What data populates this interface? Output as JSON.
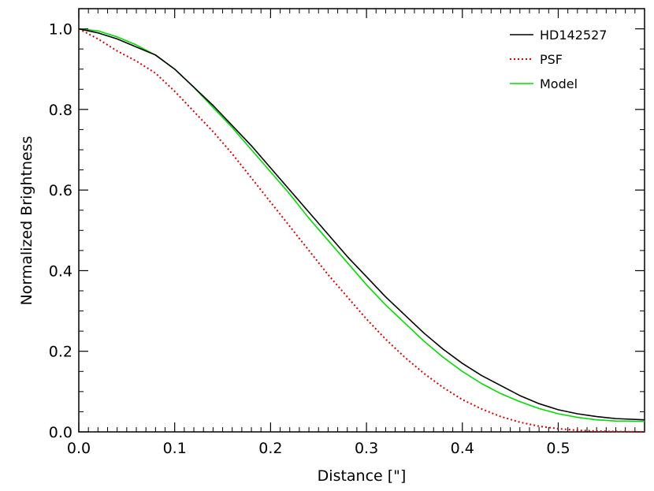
{
  "chart_data": {
    "type": "line",
    "xlabel": "Distance [\"]",
    "ylabel": "Normalized Brightness",
    "xlim": [
      0.0,
      0.59
    ],
    "ylim": [
      0.0,
      1.05
    ],
    "x_ticks": [
      0.0,
      0.1,
      0.2,
      0.3,
      0.4,
      0.5
    ],
    "x_tick_labels": [
      "0.0",
      "0.1",
      "0.2",
      "0.3",
      "0.4",
      "0.5"
    ],
    "y_ticks": [
      0.0,
      0.2,
      0.4,
      0.6,
      0.8,
      1.0
    ],
    "y_tick_labels": [
      "0.0",
      "0.2",
      "0.4",
      "0.6",
      "0.8",
      "1.0"
    ],
    "grid": false,
    "legend_position": "top-right",
    "series": [
      {
        "name": "HD142527",
        "color": "#000000",
        "style": "solid",
        "x": [
          0.0,
          0.02,
          0.04,
          0.06,
          0.08,
          0.1,
          0.12,
          0.14,
          0.16,
          0.18,
          0.2,
          0.22,
          0.24,
          0.26,
          0.28,
          0.3,
          0.32,
          0.34,
          0.36,
          0.38,
          0.4,
          0.42,
          0.44,
          0.46,
          0.48,
          0.5,
          0.52,
          0.54,
          0.56,
          0.59
        ],
        "y": [
          1.0,
          0.99,
          0.975,
          0.955,
          0.935,
          0.9,
          0.855,
          0.81,
          0.76,
          0.71,
          0.655,
          0.6,
          0.545,
          0.49,
          0.435,
          0.385,
          0.335,
          0.29,
          0.245,
          0.205,
          0.17,
          0.14,
          0.115,
          0.09,
          0.07,
          0.055,
          0.045,
          0.038,
          0.033,
          0.03
        ]
      },
      {
        "name": "PSF",
        "color": "#e00000",
        "style": "dotted",
        "x": [
          0.0,
          0.02,
          0.04,
          0.06,
          0.08,
          0.1,
          0.12,
          0.14,
          0.16,
          0.18,
          0.2,
          0.22,
          0.24,
          0.26,
          0.28,
          0.3,
          0.32,
          0.34,
          0.36,
          0.38,
          0.4,
          0.42,
          0.44,
          0.46,
          0.48,
          0.5,
          0.52,
          0.54,
          0.56,
          0.59
        ],
        "y": [
          1.0,
          0.975,
          0.945,
          0.92,
          0.89,
          0.845,
          0.795,
          0.745,
          0.69,
          0.63,
          0.57,
          0.51,
          0.45,
          0.39,
          0.335,
          0.28,
          0.23,
          0.185,
          0.145,
          0.11,
          0.08,
          0.057,
          0.038,
          0.024,
          0.014,
          0.008,
          0.004,
          0.002,
          0.001,
          0.0
        ]
      },
      {
        "name": "Model",
        "color": "#00dd00",
        "style": "solid",
        "x": [
          0.0,
          0.02,
          0.04,
          0.06,
          0.08,
          0.1,
          0.12,
          0.14,
          0.16,
          0.18,
          0.2,
          0.22,
          0.24,
          0.26,
          0.28,
          0.3,
          0.32,
          0.34,
          0.36,
          0.38,
          0.4,
          0.42,
          0.44,
          0.46,
          0.48,
          0.5,
          0.52,
          0.54,
          0.56,
          0.59
        ],
        "y": [
          1.0,
          0.995,
          0.98,
          0.96,
          0.935,
          0.9,
          0.855,
          0.805,
          0.755,
          0.7,
          0.645,
          0.59,
          0.53,
          0.475,
          0.42,
          0.365,
          0.315,
          0.27,
          0.225,
          0.185,
          0.15,
          0.12,
          0.095,
          0.075,
          0.058,
          0.045,
          0.036,
          0.03,
          0.027,
          0.026
        ]
      }
    ]
  }
}
